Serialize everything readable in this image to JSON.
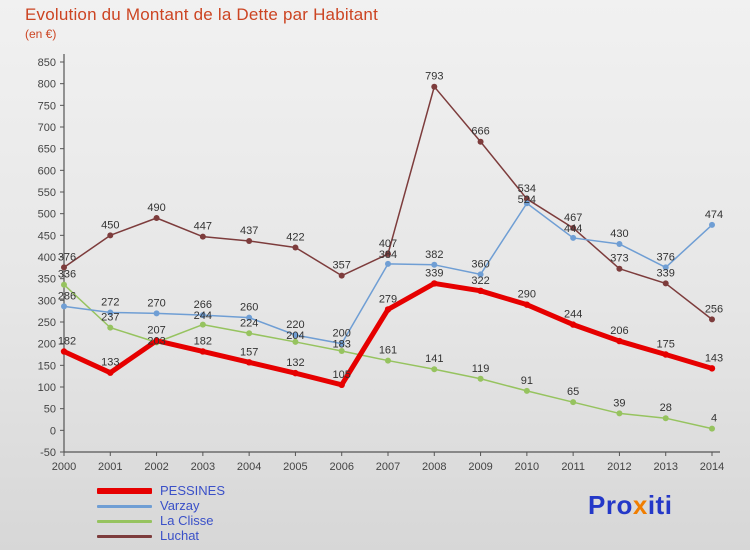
{
  "chart_data": {
    "type": "line",
    "title": "Evolution du Montant de la Dette par Habitant",
    "subtitle": "(en €)",
    "x": [
      2000,
      2001,
      2002,
      2003,
      2004,
      2005,
      2006,
      2007,
      2008,
      2009,
      2010,
      2011,
      2012,
      2013,
      2014
    ],
    "series": [
      {
        "name": "PESSINES",
        "color": "#e60000",
        "width": 5,
        "values": [
          182,
          133,
          207,
          182,
          157,
          132,
          105,
          279,
          339,
          322,
          290,
          244,
          206,
          175,
          143
        ]
      },
      {
        "name": "Varzay",
        "color": "#6f9ed4",
        "width": 1.5,
        "values": [
          286,
          272,
          270,
          266,
          260,
          220,
          200,
          384,
          382,
          360,
          524,
          444,
          430,
          376,
          474
        ]
      },
      {
        "name": "La Clisse",
        "color": "#96c35f",
        "width": 1.5,
        "values": [
          336,
          237,
          203,
          244,
          224,
          204,
          183,
          161,
          141,
          119,
          91,
          65,
          39,
          28,
          4
        ]
      },
      {
        "name": "Luchat",
        "color": "#7d3c3c",
        "width": 1.5,
        "values": [
          376,
          450,
          490,
          447,
          437,
          422,
          357,
          407,
          793,
          666,
          534,
          467,
          373,
          339,
          256
        ]
      }
    ],
    "ylim": [
      -50,
      850
    ],
    "ytick_step": 50,
    "grid": false,
    "legend_position": "bottom-left",
    "ylabel": "",
    "xlabel": ""
  },
  "colors": {
    "title": "#cc4422",
    "axis": "#555555",
    "tick_labels": "#444444",
    "value_labels": "#333333",
    "legend_text": "#3a50c8"
  },
  "logo": {
    "part1": "Pro",
    "part2": "x",
    "part3": "iti",
    "blue": "#2438c8",
    "orange": "#f07d00"
  }
}
